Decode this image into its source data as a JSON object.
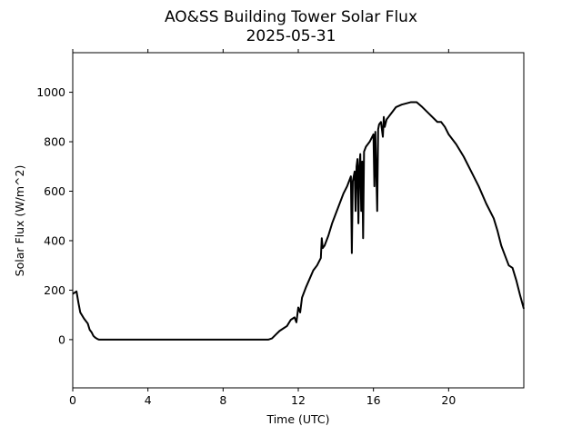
{
  "chart_data": {
    "type": "line",
    "title": "AO&SS Building Tower Solar Flux",
    "subtitle": "2025-05-31",
    "xlabel": "Time (UTC)",
    "ylabel": "Solar Flux (W/m^2)",
    "xlim": [
      0,
      24
    ],
    "ylim": [
      -195,
      1160
    ],
    "xticks": [
      0,
      4,
      8,
      12,
      16,
      20
    ],
    "xtick_labels": [
      "0",
      "4",
      "8",
      "12",
      "16",
      "20"
    ],
    "yticks": [
      0,
      200,
      400,
      600,
      800,
      1000
    ],
    "ytick_labels": [
      "0",
      "200",
      "400",
      "600",
      "800",
      "1000"
    ],
    "grid": false,
    "legend": "none",
    "series": [
      {
        "color": "#000000",
        "x": [
          0.0,
          0.1,
          0.2,
          0.3,
          0.4,
          0.6,
          0.8,
          0.9,
          1.0,
          1.1,
          1.2,
          1.3,
          1.4,
          1.6,
          2.0,
          3.0,
          4.0,
          5.0,
          6.0,
          7.0,
          8.0,
          9.0,
          10.0,
          10.4,
          10.6,
          10.8,
          11.0,
          11.2,
          11.4,
          11.6,
          11.8,
          11.9,
          12.0,
          12.1,
          12.2,
          12.4,
          12.6,
          12.8,
          13.0,
          13.2,
          13.25,
          13.3,
          13.4,
          13.6,
          13.8,
          14.0,
          14.2,
          14.4,
          14.6,
          14.8,
          14.85,
          14.9,
          15.0,
          15.05,
          15.1,
          15.15,
          15.2,
          15.25,
          15.3,
          15.35,
          15.4,
          15.45,
          15.5,
          15.6,
          15.7,
          15.8,
          16.0,
          16.05,
          16.1,
          16.2,
          16.25,
          16.3,
          16.4,
          16.5,
          16.55,
          16.6,
          16.7,
          16.8,
          17.0,
          17.2,
          17.5,
          18.0,
          18.3,
          18.6,
          19.0,
          19.4,
          19.6,
          19.8,
          20.0,
          20.4,
          20.8,
          21.2,
          21.6,
          22.0,
          22.4,
          22.6,
          22.8,
          23.0,
          23.2,
          23.4,
          23.6,
          23.8,
          24.0
        ],
        "y": [
          185,
          190,
          195,
          150,
          110,
          85,
          65,
          40,
          30,
          15,
          8,
          3,
          0,
          0,
          0,
          0,
          0,
          0,
          0,
          0,
          0,
          0,
          0,
          0,
          5,
          20,
          35,
          45,
          55,
          80,
          90,
          70,
          130,
          110,
          170,
          210,
          245,
          280,
          300,
          330,
          410,
          370,
          380,
          420,
          470,
          510,
          550,
          590,
          620,
          660,
          350,
          640,
          680,
          520,
          700,
          730,
          470,
          700,
          750,
          520,
          720,
          410,
          760,
          780,
          790,
          800,
          830,
          620,
          840,
          520,
          850,
          870,
          880,
          820,
          900,
          860,
          890,
          900,
          920,
          940,
          950,
          960,
          960,
          940,
          910,
          880,
          880,
          860,
          830,
          790,
          740,
          680,
          620,
          550,
          490,
          440,
          380,
          340,
          300,
          290,
          240,
          180,
          125
        ]
      }
    ]
  }
}
